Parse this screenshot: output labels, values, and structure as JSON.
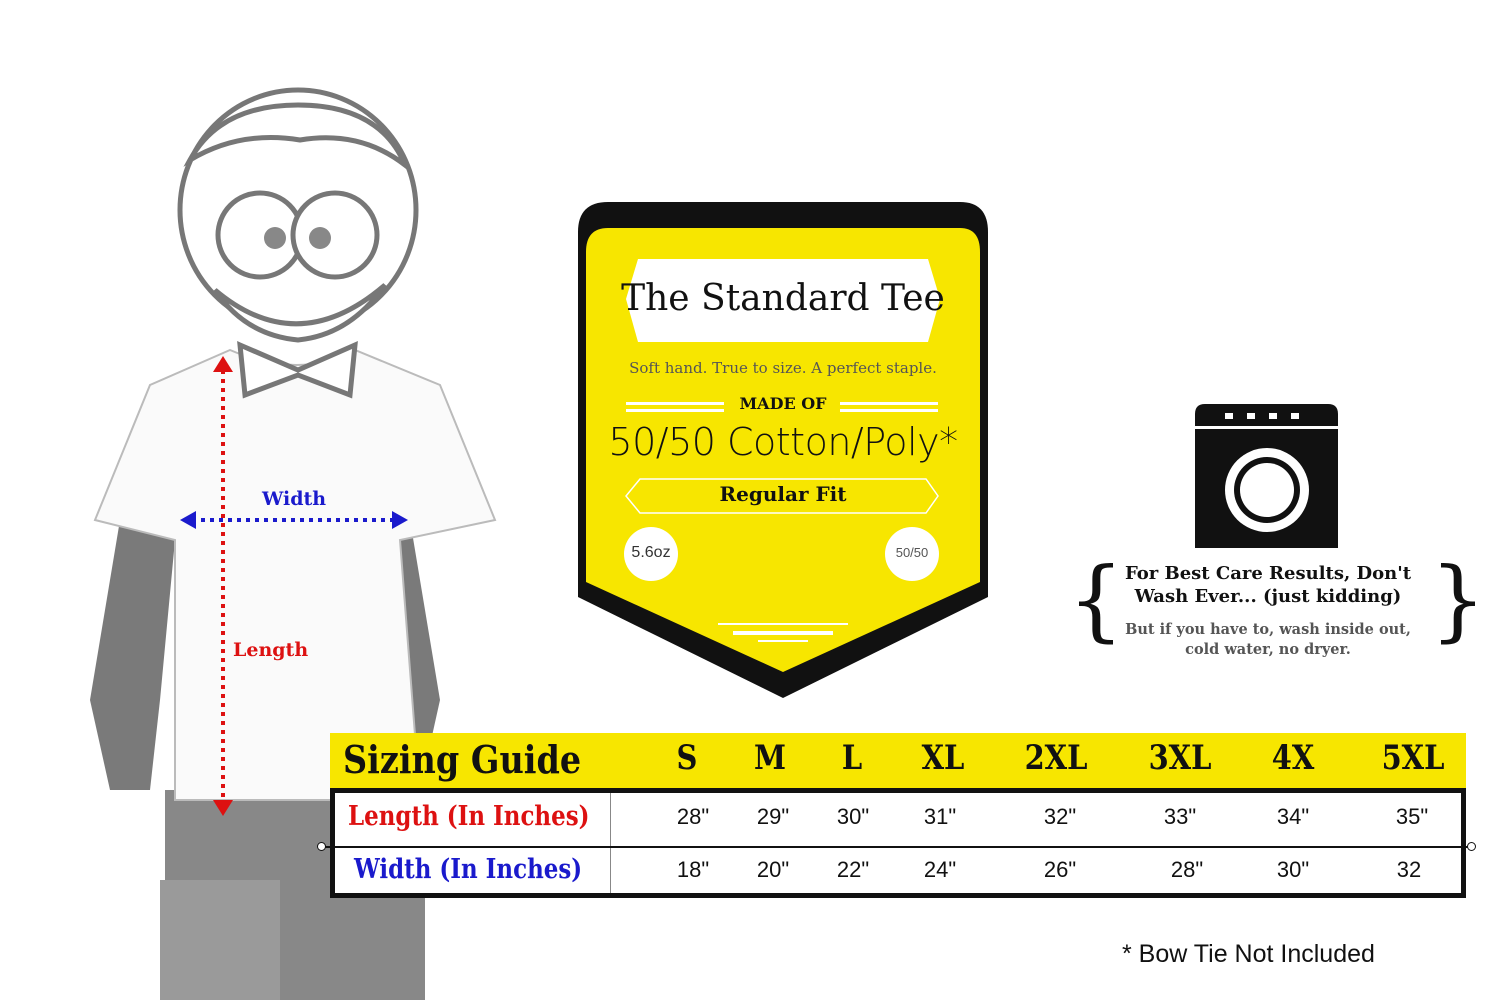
{
  "figure": {
    "width_label": "Width",
    "length_label": "Length",
    "colors": {
      "width_arrow": "#1a1acc",
      "length_arrow": "#dd1111"
    }
  },
  "badge": {
    "title": "The Standard Tee",
    "tagline": "Soft hand. True to size. A perfect staple.",
    "made_of_label": "MADE OF",
    "material": "50/50 Cotton/Poly*",
    "fit": "Regular Fit",
    "weight": "5.6oz",
    "blend": "50/50",
    "colors": {
      "yellow": "#f7e600",
      "border": "#111111"
    }
  },
  "care": {
    "icon": "washing-machine-icon",
    "heading": "For Best Care Results, Don't Wash Ever... (just kidding)",
    "body": "But if you have to, wash inside out, cold water, no dryer."
  },
  "sizing": {
    "title": "Sizing Guide",
    "sizes": [
      "S",
      "M",
      "L",
      "XL",
      "2XL",
      "3XL",
      "4X",
      "5XL"
    ],
    "rows": [
      {
        "label": "Length (In Inches)",
        "color": "#dd1111",
        "values": [
          "28\"",
          "29\"",
          "30\"",
          "31\"",
          "32\"",
          "33\"",
          "34\"",
          "35\""
        ]
      },
      {
        "label": "Width (In Inches)",
        "color": "#1a1acc",
        "values": [
          "18\"",
          "20\"",
          "22\"",
          "24\"",
          "26\"",
          "28\"",
          "30\"",
          "32"
        ]
      }
    ]
  },
  "footnote": "* Bow Tie Not Included"
}
